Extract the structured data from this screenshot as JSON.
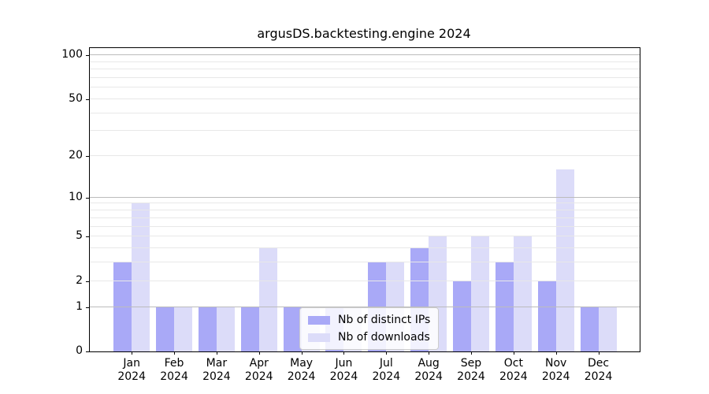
{
  "title": "argusDS.backtesting.engine 2024",
  "colors": {
    "distinct_ips_bar": "#a9a9f7",
    "downloads_bar": "#dcdcf9",
    "major_gridline": "#bcbcbc",
    "minor_gridline": "#e8e8e8",
    "axis": "#000000"
  },
  "chart_data": {
    "type": "bar",
    "title": "argusDS.backtesting.engine 2024",
    "xlabel": "",
    "ylabel": "",
    "categories": [
      "Jan 2024",
      "Feb 2024",
      "Mar 2024",
      "Apr 2024",
      "May 2024",
      "Jun 2024",
      "Jul 2024",
      "Aug 2024",
      "Sep 2024",
      "Oct 2024",
      "Nov 2024",
      "Dec 2024"
    ],
    "series": [
      {
        "name": "Nb of distinct IPs",
        "color": "#a9a9f7",
        "values": [
          3,
          1,
          1,
          1,
          1,
          1,
          3,
          4,
          2,
          3,
          2,
          1
        ]
      },
      {
        "name": "Nb of downloads",
        "color": "#dcdcf9",
        "values": [
          9,
          1,
          1,
          4,
          1,
          1,
          3,
          5,
          5,
          5,
          16,
          1
        ]
      }
    ],
    "yscale": "log1p",
    "yticks": [
      0,
      1,
      2,
      5,
      10,
      20,
      50,
      100
    ],
    "minor_gridlines": [
      3,
      4,
      6,
      7,
      8,
      9,
      30,
      40,
      60,
      70,
      80,
      90
    ],
    "ylim": [
      0,
      112
    ],
    "grid": true,
    "legend_position": "inside lower-center"
  }
}
